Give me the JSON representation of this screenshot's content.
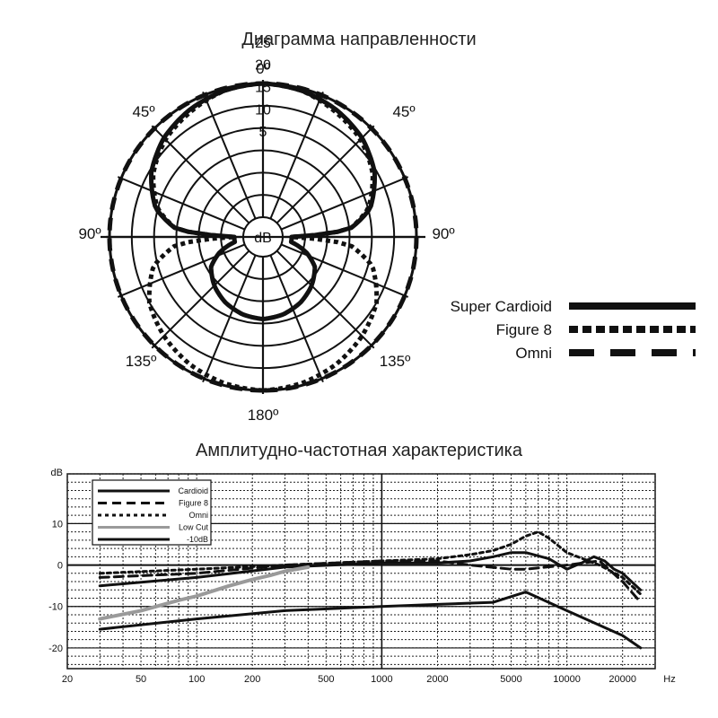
{
  "polar_title": "Диаграмма направленности",
  "freq_title": "Амплитудно-частотная характеристика",
  "chart_data": [
    {
      "type": "polar",
      "title": "Диаграмма направленности",
      "angle_labels": [
        "0º",
        "45º",
        "45º",
        "90º",
        "90º",
        "135º",
        "135º",
        "180º"
      ],
      "radial_labels": [
        "5",
        "10",
        "15",
        "20",
        "25",
        "dB"
      ],
      "radial_ticks_db": [
        0,
        5,
        10,
        15,
        20,
        25
      ],
      "r_range_db": [
        0,
        30
      ],
      "series": [
        {
          "name": "Super Cardioid",
          "style": "solid",
          "angles_deg": [
            0,
            15,
            30,
            45,
            60,
            75,
            85,
            90,
            100,
            110,
            120,
            135,
            150,
            165,
            180
          ],
          "values_db": [
            0,
            0.5,
            1.5,
            3,
            5.5,
            9.5,
            15,
            28,
            28,
            24,
            21,
            19,
            17.5,
            16.5,
            16
          ]
        },
        {
          "name": "Figure 8",
          "style": "dotted",
          "angles_deg": [
            0,
            15,
            30,
            45,
            60,
            75,
            85,
            90,
            95,
            105,
            120,
            135,
            150,
            165,
            180
          ],
          "values_db": [
            0,
            0.5,
            2,
            3.5,
            6,
            10,
            15,
            28,
            15,
            9,
            5,
            3,
            1.5,
            0.5,
            0
          ]
        },
        {
          "name": "Omni",
          "style": "dashed",
          "angles_deg": [
            0,
            30,
            60,
            90,
            120,
            150,
            180
          ],
          "values_db": [
            0,
            0,
            0,
            0,
            0,
            0,
            0
          ]
        }
      ],
      "legend": [
        {
          "label": "Super Cardioid",
          "style": "solid"
        },
        {
          "label": "Figure 8",
          "style": "dotted"
        },
        {
          "label": "Omni",
          "style": "dashed"
        }
      ]
    },
    {
      "type": "line",
      "title": "Амплитудно-частотная характеристика",
      "xscale": "log",
      "xlim": [
        20,
        30000
      ],
      "ylim": [
        -25,
        22
      ],
      "ylabel": "dB",
      "xunit": "Hz",
      "x_ticks": [
        20,
        50,
        100,
        200,
        500,
        1000,
        2000,
        5000,
        10000,
        20000
      ],
      "x_tick_labels": [
        "20",
        "50",
        "100",
        "200",
        "500",
        "1000",
        "2000",
        "5000",
        "10000",
        "20000"
      ],
      "y_ticks": [
        10,
        0,
        -10,
        -20
      ],
      "y_tick_labels": [
        "10",
        "0",
        "-10",
        "-20"
      ],
      "series": [
        {
          "name": "Cardioid",
          "style": "solid",
          "x": [
            30,
            100,
            300,
            1000,
            2000,
            3000,
            4000,
            5000,
            6000,
            8000,
            10000,
            12000,
            14000,
            16000,
            18000,
            20000,
            25000
          ],
          "y": [
            -5,
            -3,
            -0.5,
            0.5,
            0.5,
            1,
            2,
            3,
            3,
            1.5,
            -1,
            0.5,
            2,
            1,
            -1,
            -2,
            -6
          ]
        },
        {
          "name": "Figure 8",
          "style": "dashed",
          "x": [
            30,
            100,
            300,
            1000,
            2000,
            3000,
            5000,
            6000,
            10000,
            15000,
            20000,
            25000
          ],
          "y": [
            -3,
            -2,
            0,
            1,
            1,
            0,
            -1,
            -1,
            0,
            1,
            -4,
            -9
          ]
        },
        {
          "name": "Omni",
          "style": "dotted",
          "x": [
            30,
            100,
            300,
            1000,
            2000,
            3000,
            4000,
            5000,
            6000,
            7000,
            8000,
            10000,
            15000,
            20000,
            25000
          ],
          "y": [
            -2,
            -1,
            0,
            1,
            1.5,
            2.5,
            3.5,
            5,
            7,
            8,
            6.5,
            3,
            0,
            -3,
            -7
          ]
        },
        {
          "name": "Low Cut",
          "style": "solid-gray",
          "x": [
            30,
            50,
            80,
            100,
            150,
            200,
            250,
            300,
            400
          ],
          "y": [
            -13,
            -11,
            -8.5,
            -7.5,
            -5,
            -3.5,
            -2.5,
            -1.5,
            -0.5
          ]
        },
        {
          "name": "-10dB",
          "style": "solid",
          "x": [
            30,
            100,
            300,
            1000,
            2000,
            4000,
            6000,
            10000,
            20000,
            25000
          ],
          "y": [
            -15.5,
            -13,
            -11,
            -10,
            -9.5,
            -9,
            -6.5,
            -11,
            -17,
            -20
          ]
        }
      ],
      "legend": [
        {
          "label": "Cardioid",
          "style": "solid"
        },
        {
          "label": "Figure 8",
          "style": "dashed"
        },
        {
          "label": "Omni",
          "style": "dotted"
        },
        {
          "label": "Low Cut",
          "style": "solid-gray"
        },
        {
          "label": "-10dB",
          "style": "solid"
        }
      ]
    }
  ]
}
